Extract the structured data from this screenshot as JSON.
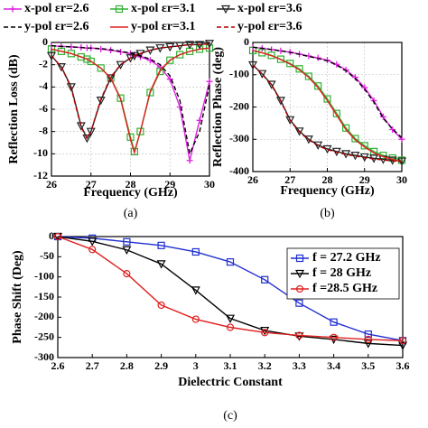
{
  "chart_data": [
    {
      "type": "line",
      "panel_label": "(a)",
      "xlabel": "Frequency (GHz)",
      "ylabel": "Reflection Loss (dB)",
      "x": [
        26,
        26.25,
        26.5,
        26.75,
        26.9,
        27,
        27.25,
        27.5,
        27.75,
        28,
        28.1,
        28.25,
        28.5,
        28.75,
        29,
        29.25,
        29.5,
        29.75,
        30
      ],
      "xlim": [
        26,
        30
      ],
      "xticks": [
        26,
        27,
        28,
        29,
        30
      ],
      "ylim": [
        -12,
        0
      ],
      "yticks": [
        0,
        -2,
        -4,
        -6,
        -8,
        -10,
        -12
      ],
      "grid": true,
      "series": [
        {
          "name": "x-pol εr=2.6",
          "color": "#e020e0",
          "marker": "plus",
          "line_style": "solid",
          "values": [
            -0.3,
            -0.35,
            -0.4,
            -0.45,
            -0.5,
            -0.5,
            -0.6,
            -0.7,
            -0.85,
            -1.0,
            -1.1,
            -1.3,
            -1.6,
            -2.2,
            -3.3,
            -5.8,
            -10.6,
            -7.0,
            -3.5
          ]
        },
        {
          "name": "x-pol εr=3.1",
          "color": "#30b030",
          "marker": "square",
          "line_style": "solid",
          "values": [
            -0.6,
            -0.8,
            -1.0,
            -1.3,
            -1.5,
            -1.7,
            -2.3,
            -3.2,
            -5.0,
            -8.5,
            -9.8,
            -8.0,
            -4.5,
            -2.6,
            -1.6,
            -1.1,
            -0.8,
            -0.6,
            -0.5
          ]
        },
        {
          "name": "x-pol εr=3.6",
          "color": "#222222",
          "marker": "triangle-down",
          "line_style": "solid",
          "values": [
            -1.2,
            -2.2,
            -4.0,
            -7.5,
            -8.6,
            -8.0,
            -5.2,
            -3.2,
            -2.0,
            -1.4,
            -1.2,
            -1.0,
            -0.7,
            -0.5,
            -0.4,
            -0.3,
            -0.2,
            -0.2,
            -0.1
          ]
        },
        {
          "name": "y-pol εr=2.6",
          "color": "#000000",
          "marker": "none",
          "line_style": "dashed",
          "values": [
            -0.3,
            -0.35,
            -0.4,
            -0.45,
            -0.5,
            -0.5,
            -0.55,
            -0.65,
            -0.8,
            -0.95,
            -1.05,
            -1.2,
            -1.5,
            -2.0,
            -3.0,
            -5.2,
            -10.0,
            -8.0,
            -3.8
          ]
        },
        {
          "name": "y-pol εr=3.1",
          "color": "#e02020",
          "marker": "none",
          "line_style": "solid",
          "values": [
            -0.6,
            -0.8,
            -1.0,
            -1.3,
            -1.5,
            -1.7,
            -2.3,
            -3.2,
            -5.1,
            -8.7,
            -9.9,
            -8.0,
            -4.4,
            -2.5,
            -1.6,
            -1.1,
            -0.8,
            -0.6,
            -0.5
          ]
        },
        {
          "name": "y-pol εr=3.6",
          "color": "#b00000",
          "marker": "none",
          "line_style": "dashed",
          "values": [
            -1.2,
            -2.2,
            -4.1,
            -7.6,
            -8.6,
            -8.0,
            -5.1,
            -3.1,
            -2.0,
            -1.4,
            -1.2,
            -1.0,
            -0.7,
            -0.5,
            -0.4,
            -0.3,
            -0.2,
            -0.2,
            -0.1
          ]
        }
      ]
    },
    {
      "type": "line",
      "panel_label": "(b)",
      "xlabel": "Frequency (GHz)",
      "ylabel": "Reflection Phase (deg)",
      "x": [
        26,
        26.25,
        26.5,
        26.75,
        27,
        27.25,
        27.5,
        27.75,
        28,
        28.25,
        28.5,
        28.75,
        29,
        29.25,
        29.5,
        29.75,
        30
      ],
      "xlim": [
        26,
        30
      ],
      "xticks": [
        26,
        27,
        28,
        29,
        30
      ],
      "ylim": [
        -400,
        0
      ],
      "yticks": [
        0,
        -100,
        -200,
        -300,
        -400
      ],
      "grid": true,
      "series": [
        {
          "color": "#e020e0",
          "marker": "plus",
          "line_style": "solid",
          "values": [
            -15,
            -18,
            -22,
            -26,
            -30,
            -36,
            -42,
            -48,
            -55,
            -68,
            -85,
            -108,
            -140,
            -180,
            -230,
            -270,
            -300
          ]
        },
        {
          "color": "#30b030",
          "marker": "square",
          "line_style": "solid",
          "values": [
            -25,
            -32,
            -40,
            -52,
            -65,
            -82,
            -105,
            -135,
            -175,
            -220,
            -265,
            -298,
            -320,
            -338,
            -350,
            -358,
            -365
          ]
        },
        {
          "color": "#222222",
          "marker": "triangle-down",
          "line_style": "solid",
          "values": [
            -70,
            -97,
            -130,
            -180,
            -240,
            -275,
            -300,
            -318,
            -330,
            -338,
            -345,
            -350,
            -355,
            -359,
            -362,
            -365,
            -368
          ]
        },
        {
          "color": "#000000",
          "marker": "none",
          "line_style": "dashed",
          "values": [
            -15,
            -18,
            -22,
            -26,
            -31,
            -37,
            -43,
            -50,
            -57,
            -70,
            -88,
            -112,
            -145,
            -185,
            -235,
            -268,
            -295
          ]
        },
        {
          "color": "#e02020",
          "marker": "none",
          "line_style": "solid",
          "values": [
            -25,
            -32,
            -41,
            -53,
            -67,
            -85,
            -108,
            -140,
            -180,
            -225,
            -270,
            -302,
            -324,
            -342,
            -354,
            -362,
            -370
          ]
        },
        {
          "color": "#b00000",
          "marker": "none",
          "line_style": "dashed",
          "values": [
            -70,
            -98,
            -132,
            -182,
            -242,
            -277,
            -302,
            -320,
            -332,
            -340,
            -347,
            -352,
            -357,
            -361,
            -364,
            -367,
            -370
          ]
        }
      ]
    },
    {
      "type": "line",
      "panel_label": "(c)",
      "xlabel": "Dielectric Constant",
      "ylabel": "Phase Shift (Deg)",
      "x": [
        2.6,
        2.7,
        2.8,
        2.9,
        3.0,
        3.1,
        3.2,
        3.3,
        3.4,
        3.5,
        3.6
      ],
      "xlim": [
        2.6,
        3.6
      ],
      "xticks": [
        2.6,
        2.7,
        2.8,
        2.9,
        3,
        3.1,
        3.2,
        3.3,
        3.4,
        3.5,
        3.6
      ],
      "ylim": [
        -300,
        0
      ],
      "yticks": [
        0,
        -50,
        -100,
        -150,
        -200,
        -250,
        -300
      ],
      "grid": false,
      "series": [
        {
          "name": "f = 27.2 GHz",
          "color": "#1f2fd0",
          "marker": "square",
          "line_style": "solid",
          "values": [
            0,
            -4,
            -13,
            -22,
            -38,
            -63,
            -107,
            -165,
            -212,
            -242,
            -258
          ]
        },
        {
          "name": "f = 28 GHz",
          "color": "#000000",
          "marker": "triangle-down",
          "line_style": "solid",
          "values": [
            0,
            -12,
            -33,
            -68,
            -133,
            -203,
            -233,
            -247,
            -255,
            -265,
            -270
          ]
        },
        {
          "name": "f =28.5 GHz",
          "color": "#e02020",
          "marker": "circle",
          "line_style": "solid",
          "values": [
            0,
            -32,
            -92,
            -170,
            -205,
            -225,
            -238,
            -245,
            -250,
            -255,
            -258
          ]
        }
      ]
    }
  ]
}
